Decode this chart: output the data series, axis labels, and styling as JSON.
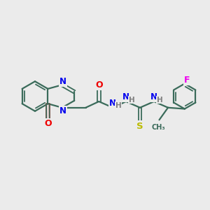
{
  "background_color": "#ebebeb",
  "bond_color": "#3a6b5a",
  "N_color": "#0000ee",
  "O_color": "#ee0000",
  "S_color": "#bbbb00",
  "F_color": "#ee00ee",
  "H_color": "#808080",
  "figsize": [
    3.0,
    3.0
  ],
  "dpi": 100,
  "xlim": [
    0,
    12
  ],
  "ylim": [
    0,
    10
  ]
}
